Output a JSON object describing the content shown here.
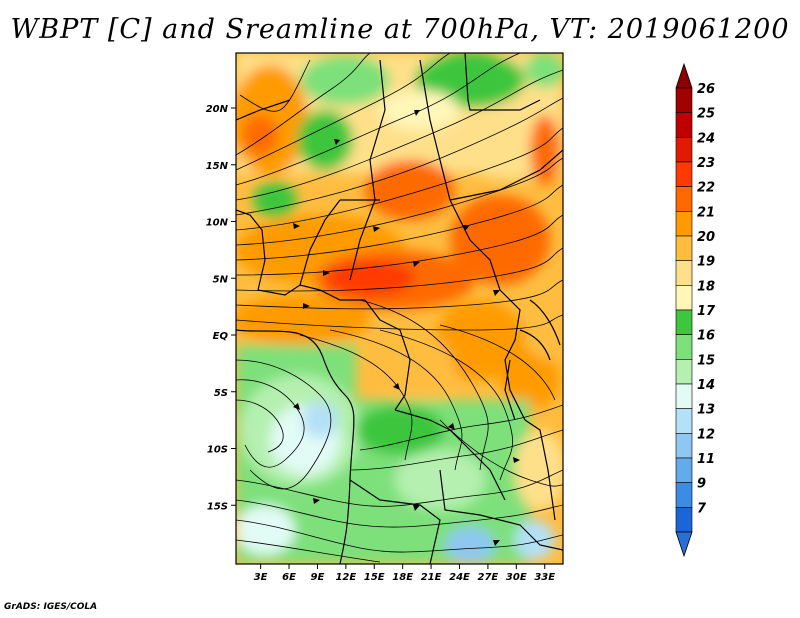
{
  "title": "WBPT [C] and Sreamline at 700hPa, VT: 2019061200",
  "credit": "GrADS: IGES/COLA",
  "axes": {
    "lon_ticks": [
      {
        "value": 3,
        "label": "3E"
      },
      {
        "value": 6,
        "label": "6E"
      },
      {
        "value": 9,
        "label": "9E"
      },
      {
        "value": 12,
        "label": "12E"
      },
      {
        "value": 15,
        "label": "15E"
      },
      {
        "value": 18,
        "label": "18E"
      },
      {
        "value": 21,
        "label": "21E"
      },
      {
        "value": 24,
        "label": "24E"
      },
      {
        "value": 27,
        "label": "27E"
      },
      {
        "value": 30,
        "label": "30E"
      },
      {
        "value": 33,
        "label": "33E"
      }
    ],
    "lat_ticks": [
      {
        "value": 20,
        "label": "20N"
      },
      {
        "value": 15,
        "label": "15N"
      },
      {
        "value": 10,
        "label": "10N"
      },
      {
        "value": 5,
        "label": "5N"
      },
      {
        "value": 0,
        "label": "EQ"
      },
      {
        "value": -5,
        "label": "5S"
      },
      {
        "value": -10,
        "label": "10S"
      },
      {
        "value": -15,
        "label": "15S"
      }
    ]
  },
  "colorbar": [
    {
      "label": "26",
      "color": "#a00000"
    },
    {
      "label": "25",
      "color": "#c00000"
    },
    {
      "label": "24",
      "color": "#e11a00"
    },
    {
      "label": "23",
      "color": "#ff3a00"
    },
    {
      "label": "22",
      "color": "#ff6a00"
    },
    {
      "label": "21",
      "color": "#ff9b00"
    },
    {
      "label": "20",
      "color": "#ffbd40"
    },
    {
      "label": "19",
      "color": "#ffe08a"
    },
    {
      "label": "18",
      "color": "#fff6b8"
    },
    {
      "label": "17",
      "color": "#3ec63e"
    },
    {
      "label": "16",
      "color": "#7ee07a"
    },
    {
      "label": "15",
      "color": "#b5f0b0"
    },
    {
      "label": "14",
      "color": "#e2fbf5"
    },
    {
      "label": "13",
      "color": "#b4e0f8"
    },
    {
      "label": "12",
      "color": "#8ec8f2"
    },
    {
      "label": "11",
      "color": "#62acec"
    },
    {
      "label": "9",
      "color": "#3a8de3"
    },
    {
      "label": "7",
      "color": "#1a66d6"
    }
  ],
  "colorbar_extremes": {
    "top": "#8c0000",
    "bottom": "#2a6fd8"
  }
}
